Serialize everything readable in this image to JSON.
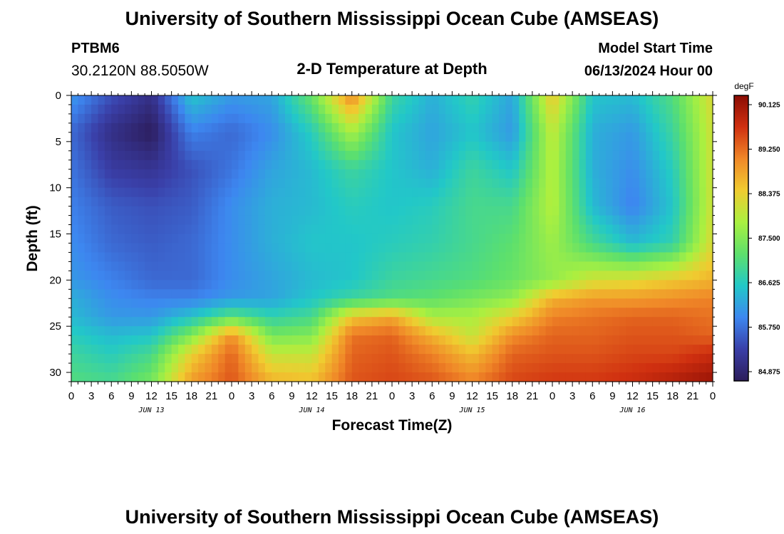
{
  "header": {
    "title": "University of Southern Mississippi Ocean Cube (AMSEAS)",
    "station": "PTBM6",
    "coords": "30.2120N  88.5050W",
    "subtitle": "2-D Temperature at Depth",
    "model_label": "Model Start Time",
    "model_time": "06/13/2024 Hour 00"
  },
  "footer": {
    "title": "University of Southern Mississippi Ocean Cube (AMSEAS)"
  },
  "chart_data": {
    "type": "heatmap",
    "xlabel": "Forecast Time(Z)",
    "ylabel": "Depth (ft)",
    "x_hours": [
      0,
      96
    ],
    "x_ticks": [
      "0",
      "3",
      "6",
      "9",
      "12",
      "15",
      "18",
      "21",
      "0",
      "3",
      "6",
      "9",
      "12",
      "15",
      "18",
      "21",
      "0",
      "3",
      "6",
      "9",
      "12",
      "15",
      "18",
      "21",
      "0",
      "3",
      "6",
      "9",
      "12",
      "15",
      "18",
      "21",
      "0"
    ],
    "day_labels": [
      {
        "label": "JUN 13",
        "hour": 12
      },
      {
        "label": "JUN 14",
        "hour": 36
      },
      {
        "label": "JUN 15",
        "hour": 60
      },
      {
        "label": "JUN 16",
        "hour": 84
      }
    ],
    "y_depth_ft": [
      0,
      31
    ],
    "y_ticks": [
      0,
      5,
      10,
      15,
      20,
      25,
      30
    ],
    "colorbar": {
      "unit": "degF",
      "min": 84.875,
      "max": 90.125,
      "tick_labels": [
        "90.125",
        "89.250",
        "88.375",
        "87.500",
        "86.625",
        "85.750",
        "84.875"
      ],
      "colors": [
        "#2c1c5a",
        "#3a3fa8",
        "#3d87f0",
        "#22c8c8",
        "#5de06c",
        "#aaf040",
        "#f0cc30",
        "#f08828",
        "#d03010",
        "#8a0c04"
      ]
    },
    "grid_time_hours": [
      0,
      6,
      12,
      18,
      24,
      30,
      36,
      42,
      48,
      54,
      60,
      66,
      72,
      78,
      84,
      90,
      96
    ],
    "grid_depth_ft": [
      0,
      4,
      8,
      12,
      16,
      20,
      22,
      24,
      26,
      28,
      31
    ],
    "values_degF": [
      [
        86.2,
        85.6,
        85.2,
        86.6,
        86.2,
        86.3,
        87.3,
        89.0,
        86.9,
        86.4,
        86.8,
        86.3,
        88.4,
        86.6,
        86.5,
        87.1,
        88.2
      ],
      [
        85.8,
        85.2,
        84.9,
        86.0,
        85.8,
        86.1,
        86.7,
        87.8,
        86.6,
        86.3,
        86.6,
        86.2,
        88.0,
        86.4,
        86.2,
        86.9,
        88.1
      ],
      [
        85.9,
        85.4,
        85.3,
        85.6,
        85.9,
        86.3,
        86.5,
        86.9,
        86.6,
        86.4,
        86.9,
        86.6,
        87.9,
        86.4,
        86.1,
        86.7,
        88.1
      ],
      [
        86.0,
        85.7,
        85.6,
        85.7,
        86.1,
        86.4,
        86.5,
        86.7,
        86.6,
        86.7,
        87.0,
        87.0,
        87.9,
        86.5,
        86.0,
        86.6,
        88.1
      ],
      [
        86.1,
        85.8,
        85.7,
        85.8,
        86.1,
        86.4,
        86.6,
        86.6,
        86.7,
        86.8,
        87.0,
        87.2,
        87.7,
        87.0,
        86.5,
        86.8,
        88.2
      ],
      [
        86.2,
        86.0,
        85.8,
        85.8,
        86.1,
        86.3,
        86.5,
        86.6,
        86.9,
        87.0,
        87.1,
        87.3,
        87.6,
        88.1,
        88.2,
        88.4,
        88.6
      ],
      [
        86.4,
        86.1,
        86.0,
        86.0,
        86.2,
        86.3,
        86.6,
        86.9,
        87.1,
        87.2,
        87.4,
        87.6,
        88.6,
        88.8,
        88.8,
        88.9,
        89.0
      ],
      [
        86.5,
        86.2,
        86.2,
        86.6,
        87.2,
        86.8,
        87.0,
        88.4,
        88.7,
        87.8,
        87.8,
        88.3,
        89.0,
        89.1,
        89.2,
        89.2,
        89.1
      ],
      [
        86.7,
        86.5,
        86.6,
        87.5,
        88.9,
        87.4,
        87.5,
        89.1,
        89.2,
        88.6,
        88.0,
        88.9,
        89.2,
        89.2,
        89.3,
        89.3,
        89.2
      ],
      [
        86.9,
        86.7,
        87.0,
        88.3,
        89.2,
        88.0,
        88.0,
        89.2,
        89.3,
        89.0,
        88.5,
        89.2,
        89.3,
        89.3,
        89.4,
        89.4,
        89.6
      ],
      [
        87.1,
        87.0,
        87.4,
        88.8,
        89.3,
        88.6,
        88.5,
        89.3,
        89.4,
        89.3,
        89.0,
        89.4,
        89.5,
        89.5,
        89.6,
        89.8,
        90.0
      ]
    ]
  }
}
